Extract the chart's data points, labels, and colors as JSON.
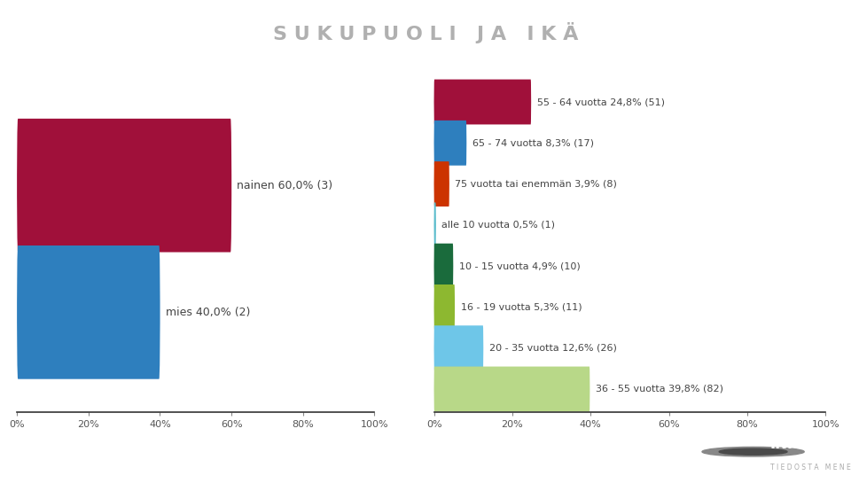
{
  "title": "S U K U P U O L I   J A   I K Ä",
  "title_color": "#b0b0b0",
  "background_color": "#ffffff",
  "left_chart": {
    "categories": [
      "nainen",
      "mies"
    ],
    "values": [
      60.0,
      40.0
    ],
    "labels": [
      "nainen 60,0% (3)",
      "mies 40,0% (2)"
    ],
    "colors": [
      "#a0103a",
      "#2e7fbe"
    ],
    "xlim": [
      0,
      100
    ]
  },
  "right_chart": {
    "categories": [
      "55 - 64 vuotta 24,8% (51)",
      "65 - 74 vuotta 8,3% (17)",
      "75 vuotta tai enemmän 3,9% (8)",
      "alle 10 vuotta 0,5% (1)",
      "10 - 15 vuotta 4,9% (10)",
      "16 - 19 vuotta 5,3% (11)",
      "20 - 35 vuotta 12,6% (26)",
      "36 - 55 vuotta 39,8% (82)"
    ],
    "values": [
      24.8,
      8.3,
      3.9,
      0.5,
      4.9,
      5.3,
      12.6,
      39.8
    ],
    "colors": [
      "#a0103a",
      "#2e7fbe",
      "#cc3300",
      "#5bbccc",
      "#1a6b3c",
      "#8db830",
      "#6ec6e8",
      "#b8d888"
    ],
    "xlim": [
      0,
      100
    ]
  },
  "banner_color": "#4a4a4a",
  "tick_labels": [
    "0%",
    "20%",
    "40%",
    "60%",
    "80%",
    "100%"
  ],
  "tick_values": [
    0,
    20,
    40,
    60,
    80,
    100
  ]
}
